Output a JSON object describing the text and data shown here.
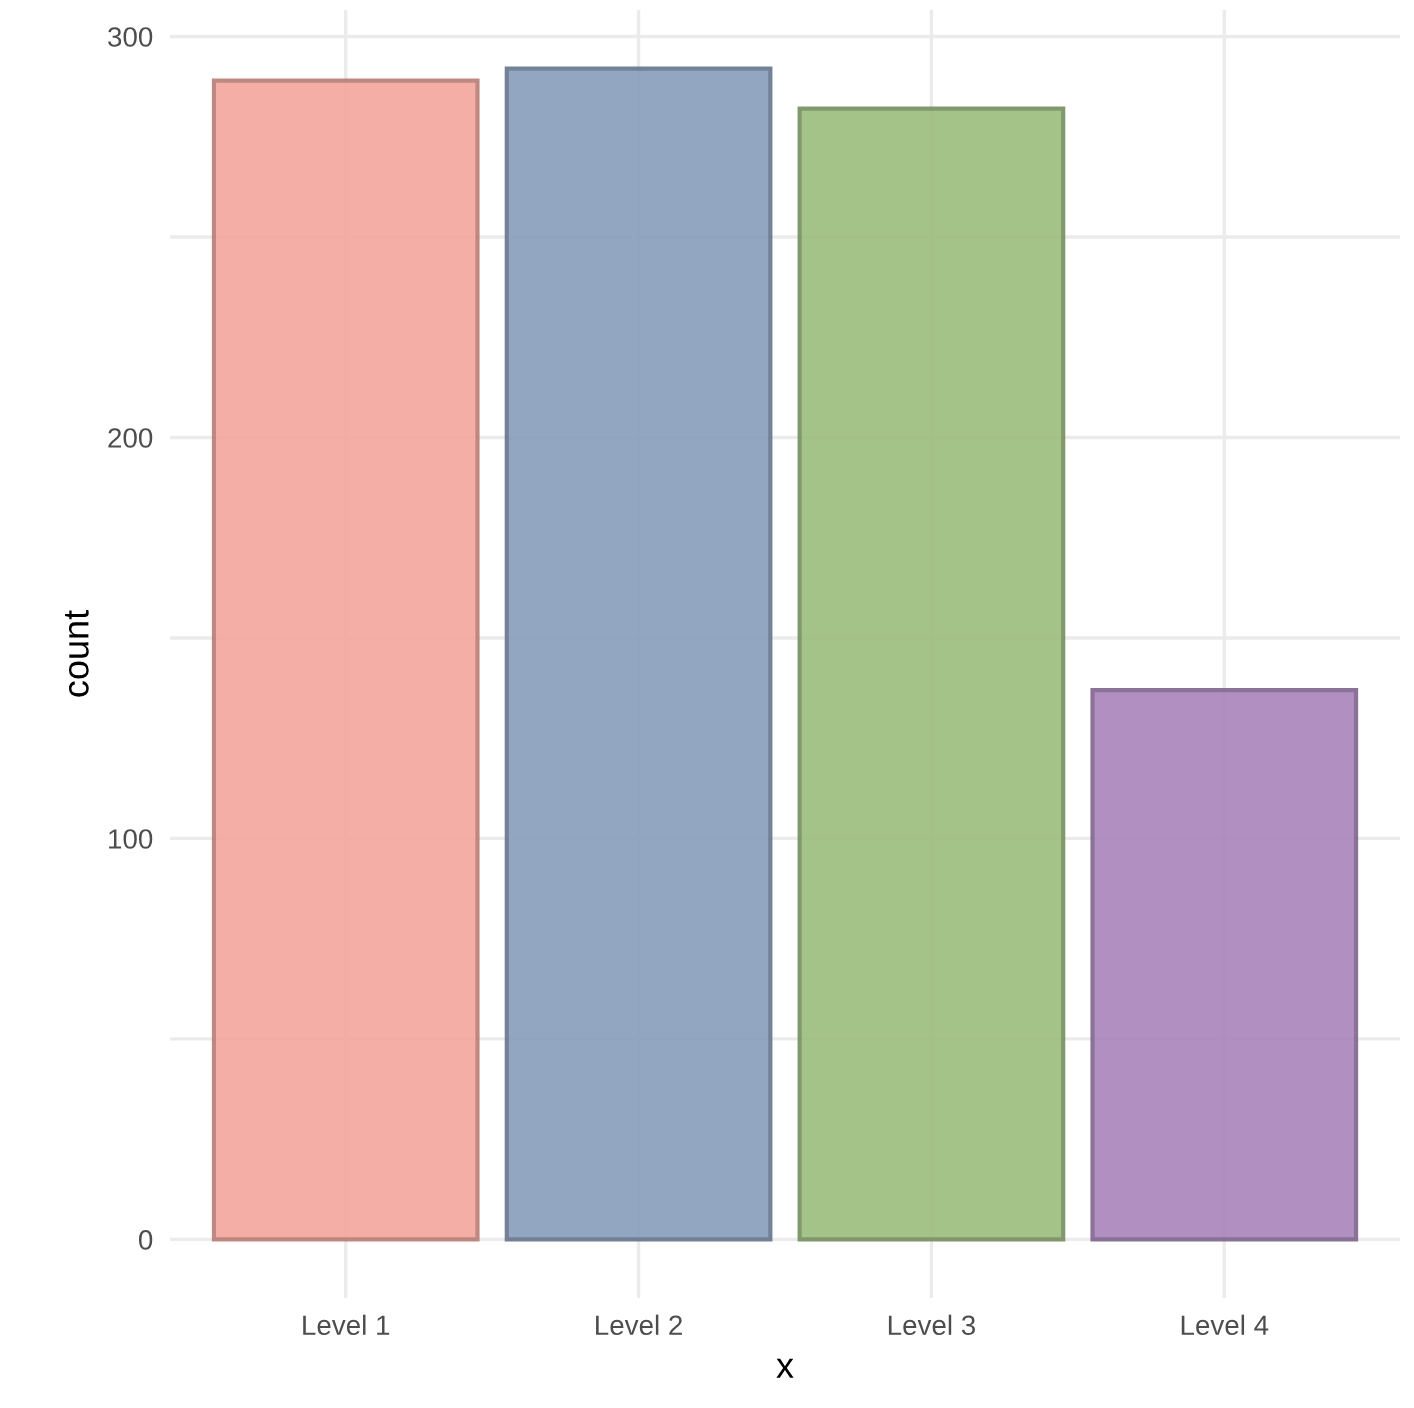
{
  "chart_data": {
    "type": "bar",
    "xlabel": "x",
    "ylabel": "count",
    "categories": [
      "Level 1",
      "Level 2",
      "Level 3",
      "Level 4"
    ],
    "values": [
      289,
      292,
      282,
      137
    ],
    "colors": [
      "#f4a69c",
      "#879cbb",
      "#9bbd7d",
      "#a984bb"
    ],
    "ylim": [
      -14.6,
      306.6
    ],
    "yticks": [
      0,
      {
        "value": 50,
        "label": null
      },
      100,
      {
        "value": 150,
        "label": null
      },
      200,
      {
        "value": 250,
        "label": null
      },
      300
    ],
    "grid": true
  }
}
